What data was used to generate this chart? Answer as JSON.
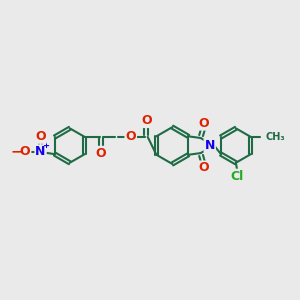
{
  "bg_color": "#eaeaea",
  "bond_color": "#1e6b45",
  "bond_width": 1.5,
  "atom_colors": {
    "O": "#dd2200",
    "N": "#1100ee",
    "Cl": "#22aa22",
    "C": "#1e6b45"
  },
  "font_size_atom": 8.5,
  "xlim": [
    0,
    10
  ],
  "ylim": [
    0,
    10
  ]
}
